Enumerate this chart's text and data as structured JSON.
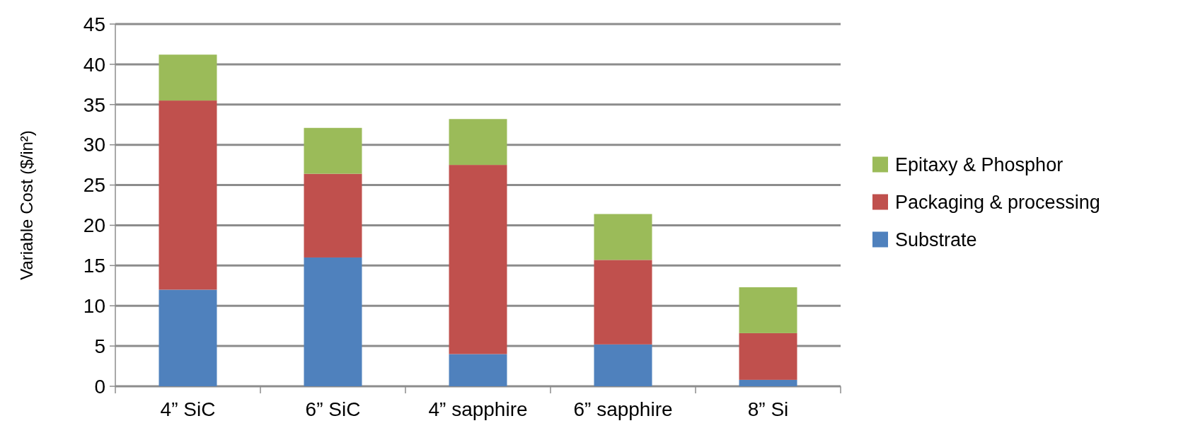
{
  "chart_data": {
    "type": "bar",
    "stacked": true,
    "ylabel": "Variable Cost ($/in²)",
    "categories": [
      "4” SiC",
      "6” SiC",
      "4” sapphire",
      "6” sapphire",
      "8” Si"
    ],
    "series": [
      {
        "name": "Substrate",
        "color": "#4f81bd",
        "values": [
          12,
          16,
          4,
          5.2,
          0.8
        ]
      },
      {
        "name": "Packaging & processing",
        "color": "#c0504d",
        "values": [
          23.5,
          10.4,
          23.5,
          10.5,
          5.8
        ]
      },
      {
        "name": "Epitaxy & Phosphor",
        "color": "#9bbb59",
        "values": [
          5.7,
          5.7,
          5.7,
          5.7,
          5.7
        ]
      }
    ],
    "ylim": [
      0,
      45
    ],
    "yticks": [
      0,
      5,
      10,
      15,
      20,
      25,
      30,
      35,
      40,
      45
    ],
    "grid": "y",
    "legend": "right"
  }
}
